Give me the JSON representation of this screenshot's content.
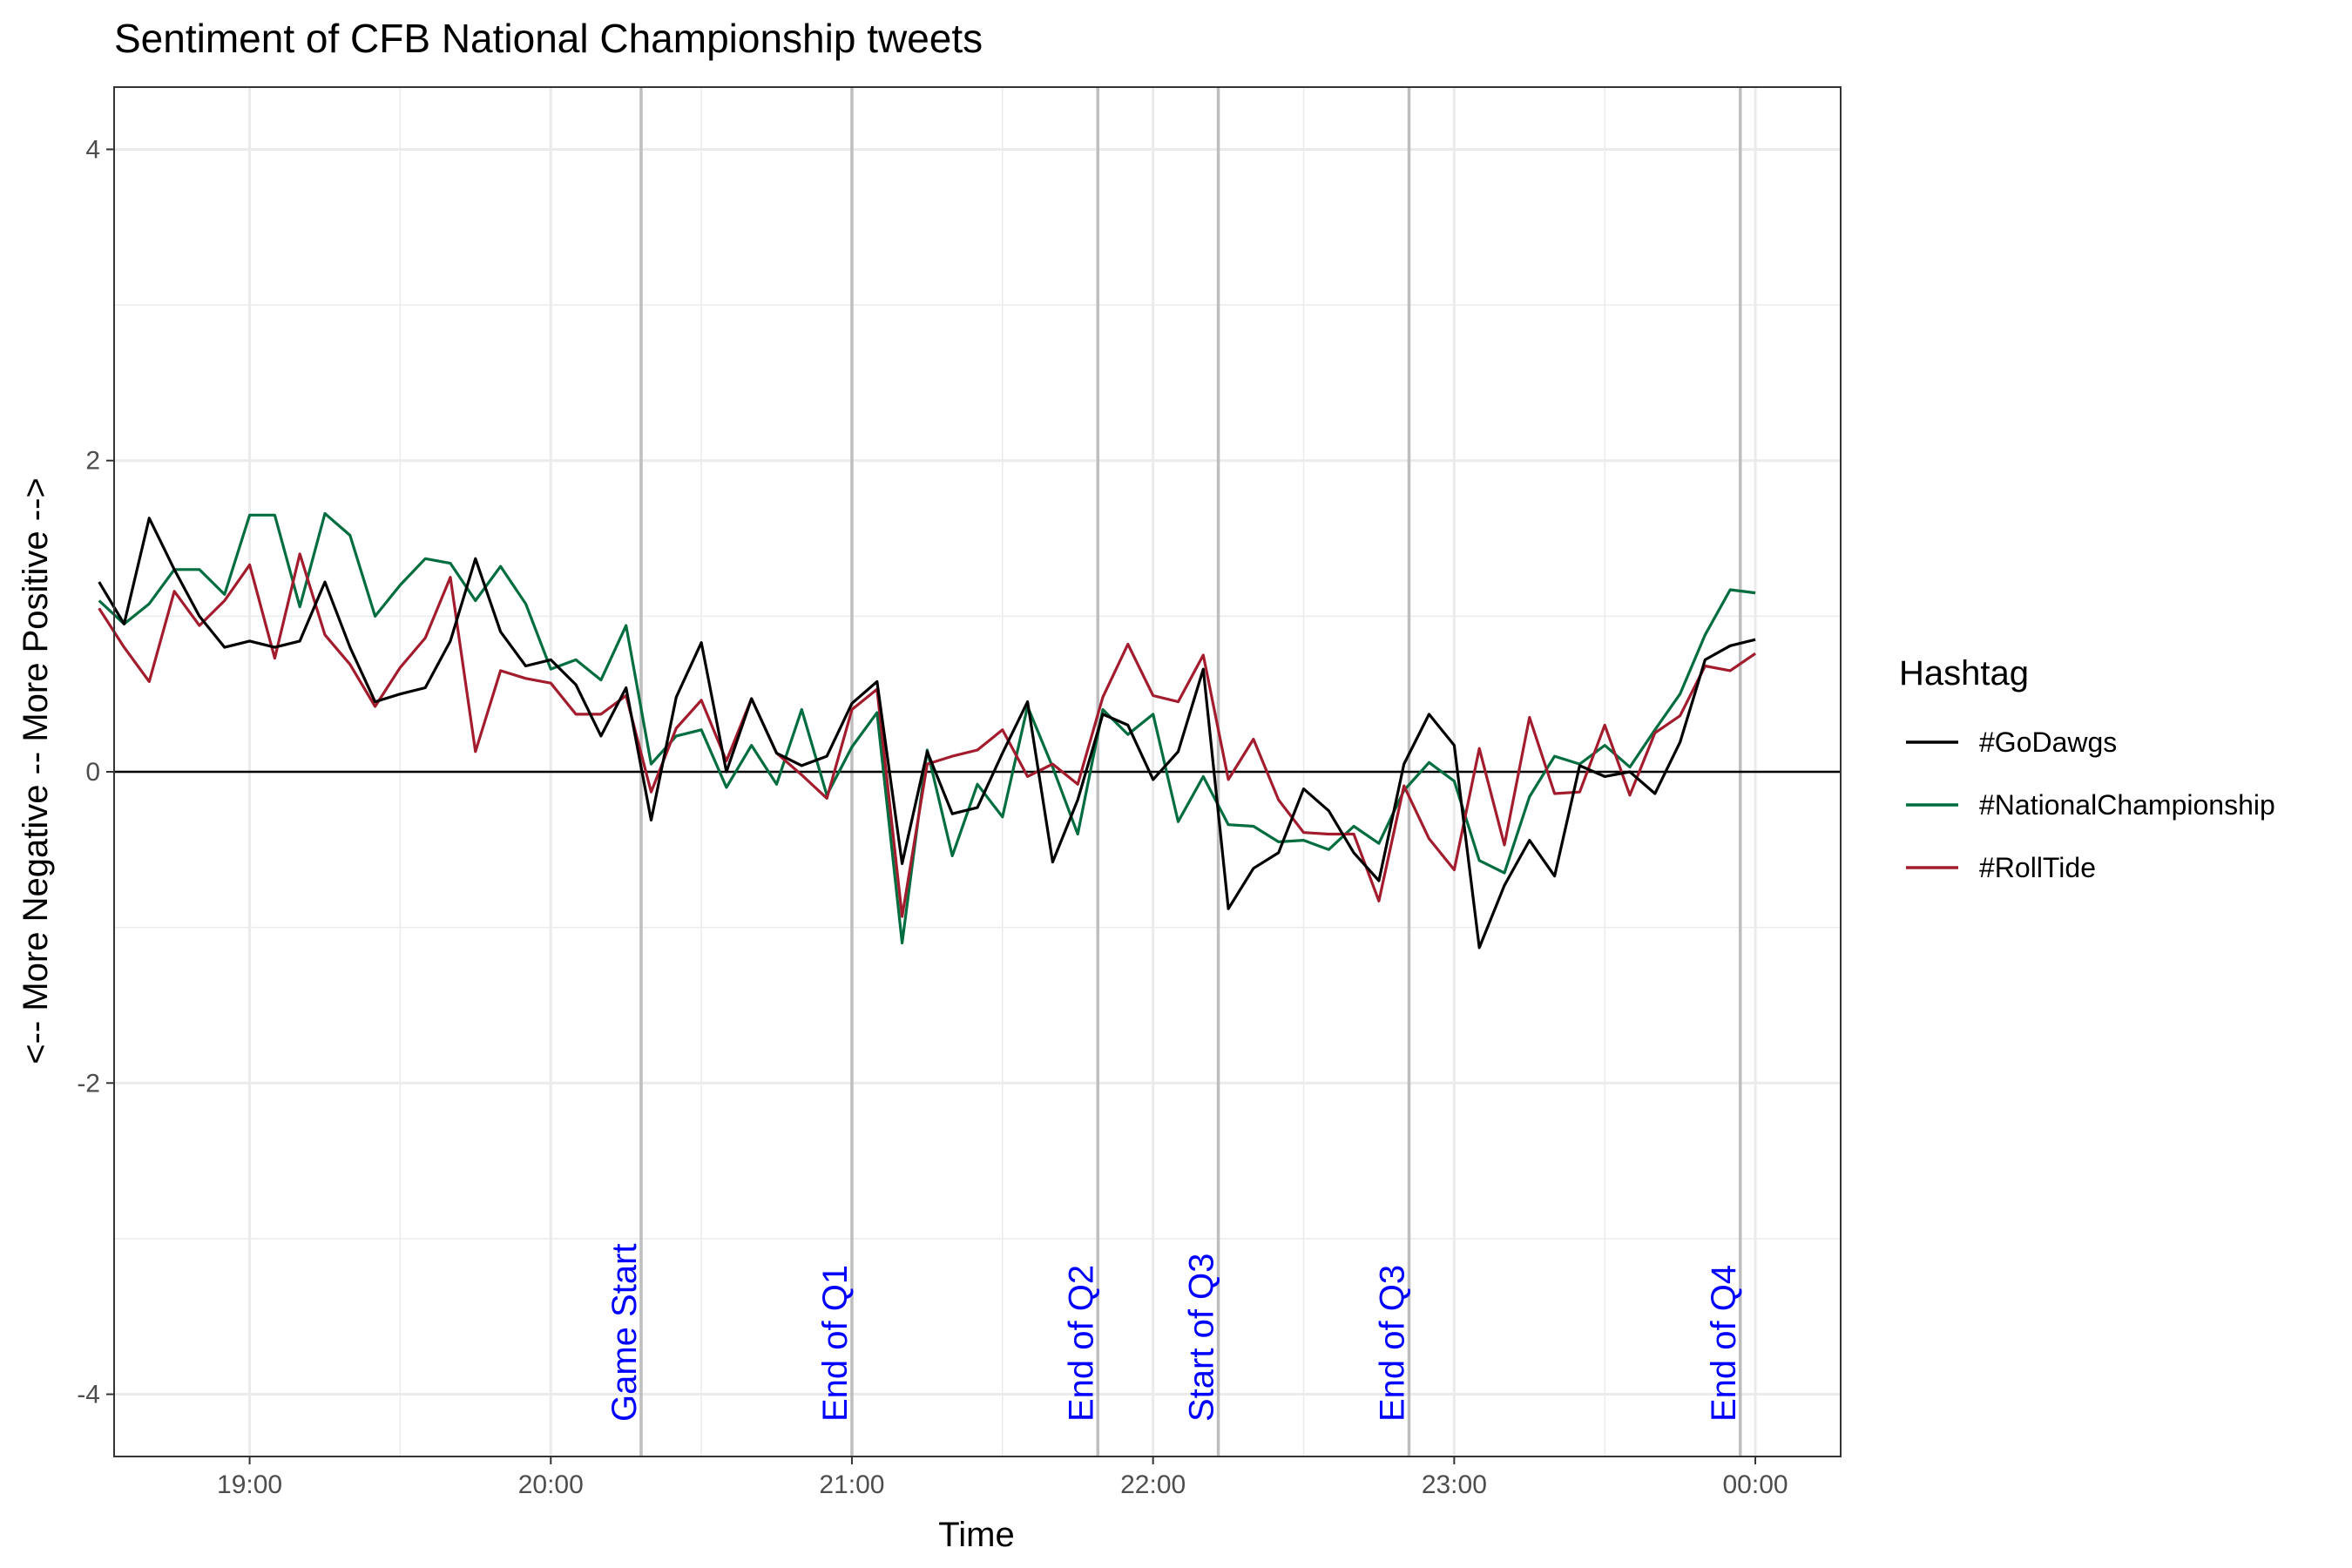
{
  "chart_data": {
    "type": "line",
    "title": "Sentiment of CFB National Championship tweets",
    "xlabel": "Time",
    "ylabel": "<-- More Negative -- More Positive -->",
    "xlim": [
      "18:33",
      "00:17"
    ],
    "ylim": [
      -4.4,
      4.4
    ],
    "x_ticks": [
      "19:00",
      "20:00",
      "21:00",
      "22:00",
      "23:00",
      "00:00"
    ],
    "y_ticks": [
      4,
      2,
      0,
      -2,
      -4
    ],
    "grid": true,
    "legend": {
      "title": "Hashtag",
      "position": "right"
    },
    "reference_line_y": 0,
    "events": [
      {
        "time": "20:18",
        "label": "Game Start"
      },
      {
        "time": "21:00",
        "label": "End of Q1"
      },
      {
        "time": "21:49",
        "label": "End of Q2"
      },
      {
        "time": "22:13",
        "label": "Start of Q3"
      },
      {
        "time": "22:51",
        "label": "End of Q3"
      },
      {
        "time": "23:57",
        "label": "End of Q4"
      }
    ],
    "x": [
      "18:30",
      "18:35",
      "18:40",
      "18:45",
      "18:50",
      "18:55",
      "19:00",
      "19:05",
      "19:10",
      "19:15",
      "19:20",
      "19:25",
      "19:30",
      "19:35",
      "19:40",
      "19:45",
      "19:50",
      "19:55",
      "20:00",
      "20:05",
      "20:10",
      "20:15",
      "20:20",
      "20:25",
      "20:30",
      "20:35",
      "20:40",
      "20:45",
      "20:50",
      "20:55",
      "21:00",
      "21:05",
      "21:10",
      "21:15",
      "21:20",
      "21:25",
      "21:30",
      "21:35",
      "21:40",
      "21:45",
      "21:50",
      "21:55",
      "22:00",
      "22:05",
      "22:10",
      "22:15",
      "22:20",
      "22:25",
      "22:30",
      "22:35",
      "22:40",
      "22:45",
      "22:50",
      "22:55",
      "23:00",
      "23:05",
      "23:10",
      "23:15",
      "23:20",
      "23:25",
      "23:30",
      "23:35",
      "23:40",
      "23:45",
      "23:50",
      "23:55",
      "00:00"
    ],
    "series": [
      {
        "name": "#GoDawgs",
        "color": "#000000",
        "values": [
          1.22,
          0.95,
          1.63,
          1.3,
          1.0,
          0.8,
          0.84,
          0.8,
          0.84,
          1.22,
          0.8,
          0.45,
          0.5,
          0.54,
          0.84,
          1.37,
          0.9,
          0.68,
          0.72,
          0.56,
          0.23,
          0.54,
          -0.31,
          0.48,
          0.83,
          0.0,
          0.47,
          0.12,
          0.04,
          0.1,
          0.44,
          0.58,
          -0.59,
          0.13,
          -0.27,
          -0.23,
          0.12,
          0.45,
          -0.58,
          -0.18,
          0.37,
          0.3,
          -0.05,
          0.13,
          0.66,
          -0.88,
          -0.62,
          -0.52,
          -0.11,
          -0.25,
          -0.52,
          -0.7,
          0.05,
          0.37,
          0.17,
          -1.13,
          -0.73,
          -0.44,
          -0.67,
          0.04,
          -0.03,
          0.0,
          -0.14,
          0.19,
          0.72,
          0.81,
          0.85
        ]
      },
      {
        "name": "#NationalChampionship",
        "color": "#006d3f",
        "values": [
          1.1,
          0.95,
          1.08,
          1.3,
          1.3,
          1.14,
          1.65,
          1.65,
          1.06,
          1.66,
          1.52,
          1.0,
          1.2,
          1.37,
          1.34,
          1.1,
          1.32,
          1.08,
          0.66,
          0.72,
          0.59,
          0.94,
          0.05,
          0.23,
          0.27,
          -0.1,
          0.17,
          -0.08,
          0.4,
          -0.15,
          0.16,
          0.38,
          -1.1,
          0.14,
          -0.54,
          -0.08,
          -0.29,
          0.42,
          0.03,
          -0.4,
          0.4,
          0.24,
          0.37,
          -0.32,
          -0.03,
          -0.34,
          -0.35,
          -0.45,
          -0.44,
          -0.5,
          -0.35,
          -0.46,
          -0.12,
          0.06,
          -0.06,
          -0.57,
          -0.65,
          -0.16,
          0.1,
          0.05,
          0.17,
          0.03,
          0.27,
          0.5,
          0.88,
          1.17,
          1.15
        ]
      },
      {
        "name": "#RollTide",
        "color": "#a31c2e",
        "values": [
          1.05,
          0.8,
          0.58,
          1.16,
          0.94,
          1.1,
          1.33,
          0.73,
          1.4,
          0.88,
          0.69,
          0.42,
          0.67,
          0.86,
          1.25,
          0.13,
          0.65,
          0.6,
          0.57,
          0.37,
          0.37,
          0.49,
          -0.13,
          0.28,
          0.46,
          0.07,
          0.47,
          0.12,
          -0.02,
          -0.17,
          0.4,
          0.53,
          -0.93,
          0.05,
          0.1,
          0.14,
          0.27,
          -0.03,
          0.05,
          -0.08,
          0.48,
          0.82,
          0.49,
          0.45,
          0.75,
          -0.05,
          0.21,
          -0.18,
          -0.39,
          -0.4,
          -0.4,
          -0.83,
          -0.09,
          -0.43,
          -0.63,
          0.15,
          -0.47,
          0.35,
          -0.14,
          -0.13,
          0.3,
          -0.15,
          0.25,
          0.36,
          0.68,
          0.65,
          0.76
        ]
      }
    ]
  }
}
